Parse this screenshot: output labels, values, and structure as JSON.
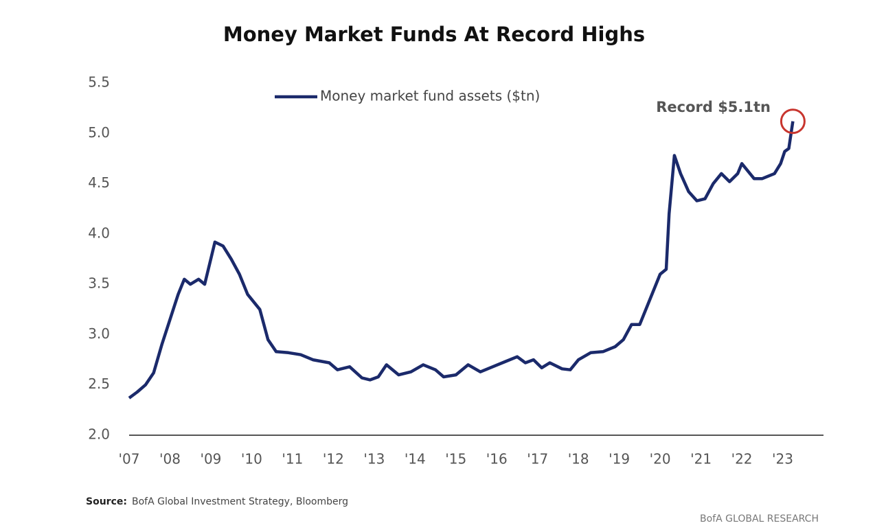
{
  "chart_data": {
    "type": "line",
    "title": "Money Market Funds At Record Highs",
    "annotation": "Record $5.1tn",
    "source_label": "Source:",
    "source": "BofA Global Investment Strategy, Bloomberg",
    "footer": "BofA GLOBAL RESEARCH",
    "xlim": [
      2007,
      2024
    ],
    "xticks": [
      {
        "value": 2007,
        "label": "'07"
      },
      {
        "value": 2008,
        "label": "'08"
      },
      {
        "value": 2009,
        "label": "'09"
      },
      {
        "value": 2010,
        "label": "'10"
      },
      {
        "value": 2011,
        "label": "'11"
      },
      {
        "value": 2012,
        "label": "'12"
      },
      {
        "value": 2013,
        "label": "'13"
      },
      {
        "value": 2014,
        "label": "'14"
      },
      {
        "value": 2015,
        "label": "'15"
      },
      {
        "value": 2016,
        "label": "'16"
      },
      {
        "value": 2017,
        "label": "'17"
      },
      {
        "value": 2018,
        "label": "'18"
      },
      {
        "value": 2019,
        "label": "'19"
      },
      {
        "value": 2020,
        "label": "'20"
      },
      {
        "value": 2021,
        "label": "'21"
      },
      {
        "value": 2022,
        "label": "'22"
      },
      {
        "value": 2023,
        "label": "'23"
      }
    ],
    "ylim": [
      2.0,
      5.5
    ],
    "yticks": [
      {
        "value": 2.0,
        "label": "2.0"
      },
      2.5,
      {
        "value": 3.0,
        "label": "3.0"
      },
      3.5,
      {
        "value": 4.0,
        "label": "4.0"
      },
      4.5,
      {
        "value": 5.0,
        "label": "5.0"
      },
      5.5
    ],
    "x": [
      2007.0,
      2007.2,
      2007.4,
      2007.6,
      2007.8,
      2008.0,
      2008.2,
      2008.35,
      2008.5,
      2008.7,
      2008.85,
      2009.0,
      2009.1,
      2009.3,
      2009.5,
      2009.7,
      2009.9,
      2010.2,
      2010.4,
      2010.6,
      2010.9,
      2011.2,
      2011.5,
      2011.9,
      2012.1,
      2012.4,
      2012.7,
      2012.9,
      2013.1,
      2013.3,
      2013.6,
      2013.9,
      2014.2,
      2014.5,
      2014.7,
      2015.0,
      2015.3,
      2015.6,
      2015.9,
      2016.2,
      2016.5,
      2016.7,
      2016.9,
      2017.1,
      2017.3,
      2017.6,
      2017.8,
      2018.0,
      2018.3,
      2018.6,
      2018.9,
      2019.1,
      2019.3,
      2019.5,
      2019.7,
      2019.9,
      2020.0,
      2020.15,
      2020.22,
      2020.35,
      2020.5,
      2020.7,
      2020.9,
      2021.1,
      2021.3,
      2021.5,
      2021.7,
      2021.9,
      2022.0,
      2022.3,
      2022.5,
      2022.8,
      2022.95,
      2023.05,
      2023.15,
      2023.25
    ],
    "series": [
      {
        "name": "Money market fund assets ($tn)",
        "color": "#1b2a6b",
        "values": [
          2.37,
          2.43,
          2.5,
          2.62,
          2.9,
          3.15,
          3.4,
          3.55,
          3.5,
          3.55,
          3.5,
          3.75,
          3.92,
          3.88,
          3.75,
          3.6,
          3.4,
          3.25,
          2.95,
          2.83,
          2.82,
          2.8,
          2.75,
          2.72,
          2.65,
          2.68,
          2.57,
          2.55,
          2.58,
          2.7,
          2.6,
          2.63,
          2.7,
          2.65,
          2.58,
          2.6,
          2.7,
          2.63,
          2.68,
          2.73,
          2.78,
          2.72,
          2.75,
          2.67,
          2.72,
          2.66,
          2.65,
          2.75,
          2.82,
          2.83,
          2.88,
          2.95,
          3.1,
          3.1,
          3.3,
          3.5,
          3.6,
          3.65,
          4.2,
          4.78,
          4.6,
          4.42,
          4.33,
          4.35,
          4.5,
          4.6,
          4.52,
          4.6,
          4.7,
          4.55,
          4.55,
          4.6,
          4.7,
          4.82,
          4.85,
          5.12
        ]
      }
    ],
    "annotation_color": "#c8352e"
  }
}
